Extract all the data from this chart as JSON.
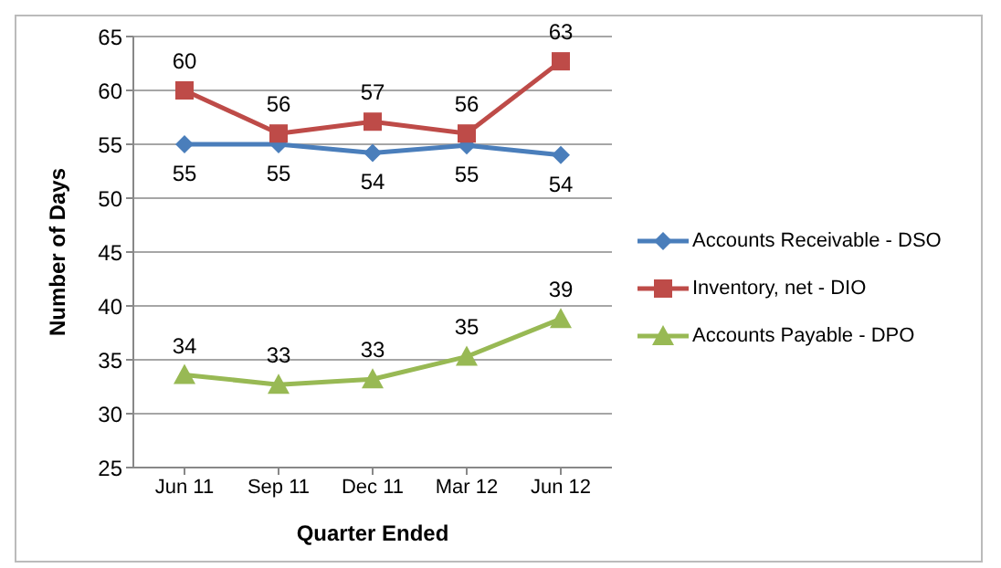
{
  "chart_data": {
    "type": "line",
    "xlabel": "Quarter Ended",
    "ylabel": "Number of Days",
    "categories": [
      "Jun 11",
      "Sep 11",
      "Dec 11",
      "Mar 12",
      "Jun 12"
    ],
    "series": [
      {
        "name": "Accounts Receivable - DSO",
        "color": "#4a7ebb",
        "marker": "diamond",
        "values": [
          55,
          55,
          54.2,
          54.9,
          54
        ],
        "value_labels": [
          "55",
          "55",
          "54",
          "55",
          "54"
        ]
      },
      {
        "name": "Inventory, net - DIO",
        "color": "#be4b48",
        "marker": "square",
        "values": [
          60,
          56,
          57.1,
          56,
          62.7
        ],
        "value_labels": [
          "60",
          "56",
          "57",
          "56",
          "63"
        ]
      },
      {
        "name": "Accounts Payable - DPO",
        "color": "#98b954",
        "marker": "triangle",
        "values": [
          33.6,
          32.7,
          33.2,
          35.3,
          38.8
        ],
        "value_labels": [
          "34",
          "33",
          "33",
          "35",
          "39"
        ]
      }
    ],
    "ylim": [
      25,
      65
    ],
    "yticks": [
      25,
      30,
      35,
      40,
      45,
      50,
      55,
      60,
      65
    ],
    "grid": "y",
    "legend": "right"
  }
}
